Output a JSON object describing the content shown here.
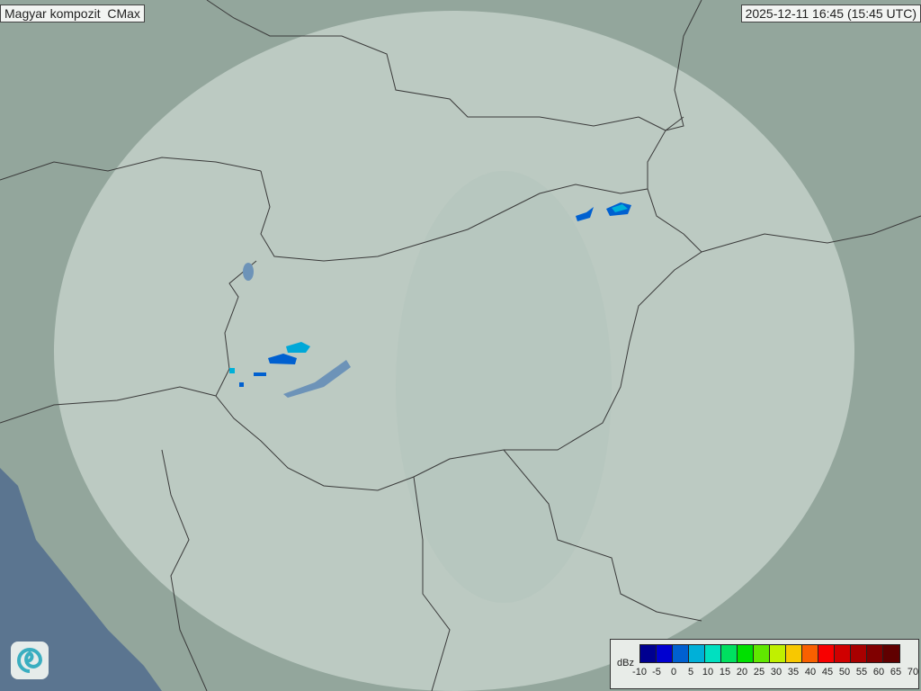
{
  "header": {
    "title": "Magyar kompozit  CMax",
    "timestamp": "2025-12-11 16:45 (15:45 UTC)"
  },
  "legend": {
    "unit": "dBz",
    "ticks": [
      "-10",
      "-5",
      "0",
      "5",
      "10",
      "15",
      "20",
      "25",
      "30",
      "35",
      "40",
      "45",
      "50",
      "55",
      "60",
      "65",
      "70"
    ],
    "colors": [
      "#000090",
      "#0000d0",
      "#0060d0",
      "#00b0d8",
      "#00e0c0",
      "#00e060",
      "#00e000",
      "#60e800",
      "#c0f000",
      "#f8c800",
      "#f86000",
      "#f80000",
      "#d00000",
      "#a80000",
      "#800000",
      "#600000"
    ]
  },
  "map": {
    "background_color": "#8fa39a",
    "coverage_color": "#c9d6cf",
    "sea_color": "#5b7590",
    "logo_icon": "swirl-logo-icon"
  }
}
